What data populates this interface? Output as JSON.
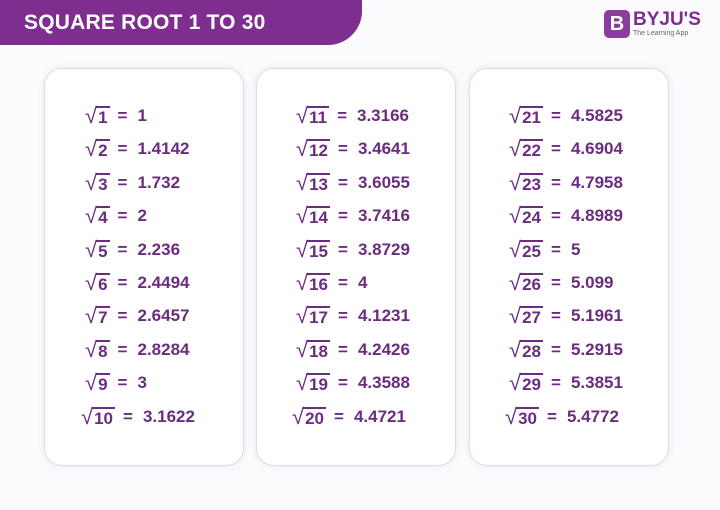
{
  "title": "SQUARE ROOT 1 TO 30",
  "logo": {
    "mark": "B",
    "name": "BYJU'S",
    "tagline": "The Learning App"
  },
  "colors": {
    "banner": "#7d2e8f",
    "text": "#6b2c80"
  },
  "columns": [
    [
      {
        "n": "1",
        "v": "1"
      },
      {
        "n": "2",
        "v": "1.4142"
      },
      {
        "n": "3",
        "v": "1.732"
      },
      {
        "n": "4",
        "v": "2"
      },
      {
        "n": "5",
        "v": "2.236"
      },
      {
        "n": "6",
        "v": "2.4494"
      },
      {
        "n": "7",
        "v": "2.6457"
      },
      {
        "n": "8",
        "v": "2.8284"
      },
      {
        "n": "9",
        "v": "3"
      },
      {
        "n": "10",
        "v": "3.1622"
      }
    ],
    [
      {
        "n": "11",
        "v": "3.3166"
      },
      {
        "n": "12",
        "v": "3.4641"
      },
      {
        "n": "13",
        "v": "3.6055"
      },
      {
        "n": "14",
        "v": "3.7416"
      },
      {
        "n": "15",
        "v": "3.8729"
      },
      {
        "n": "16",
        "v": "4"
      },
      {
        "n": "17",
        "v": "4.1231"
      },
      {
        "n": "18",
        "v": "4.2426"
      },
      {
        "n": "19",
        "v": "4.3588"
      },
      {
        "n": "20",
        "v": "4.4721"
      }
    ],
    [
      {
        "n": "21",
        "v": "4.5825"
      },
      {
        "n": "22",
        "v": "4.6904"
      },
      {
        "n": "23",
        "v": "4.7958"
      },
      {
        "n": "24",
        "v": "4.8989"
      },
      {
        "n": "25",
        "v": "5"
      },
      {
        "n": "26",
        "v": "5.099"
      },
      {
        "n": "27",
        "v": "5.1961"
      },
      {
        "n": "28",
        "v": "5.2915"
      },
      {
        "n": "29",
        "v": "5.3851"
      },
      {
        "n": "30",
        "v": "5.4772"
      }
    ]
  ],
  "symbols": {
    "radical": "√",
    "equals": "="
  }
}
